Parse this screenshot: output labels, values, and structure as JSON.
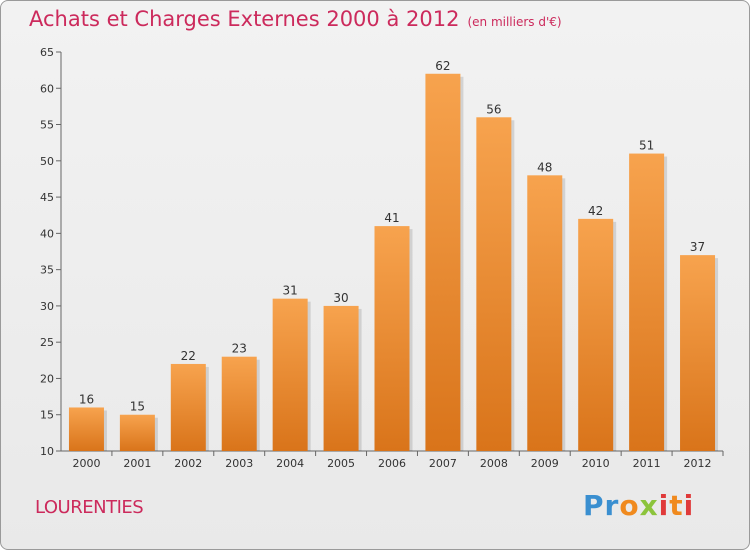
{
  "title": "Achats et Charges Externes 2000 à 2012",
  "unit": "(en milliers d'€)",
  "commune": "LOURENTIES",
  "logo": {
    "text": "Proxiti",
    "colors": [
      "#3a8fd0",
      "#f08a1e",
      "#8cc43c",
      "#e03a3a"
    ]
  },
  "chart_data": {
    "type": "bar",
    "categories": [
      "2000",
      "2001",
      "2002",
      "2003",
      "2004",
      "2005",
      "2006",
      "2007",
      "2008",
      "2009",
      "2010",
      "2011",
      "2012"
    ],
    "values": [
      16,
      15,
      22,
      23,
      31,
      30,
      41,
      62,
      56,
      48,
      42,
      51,
      37
    ],
    "ylim": [
      10,
      65
    ],
    "yticks": [
      10,
      15,
      20,
      25,
      30,
      35,
      40,
      45,
      50,
      55,
      60,
      65
    ],
    "grid": false,
    "bar_color_top": "#f7a34e",
    "bar_color_bottom": "#d9741a"
  }
}
